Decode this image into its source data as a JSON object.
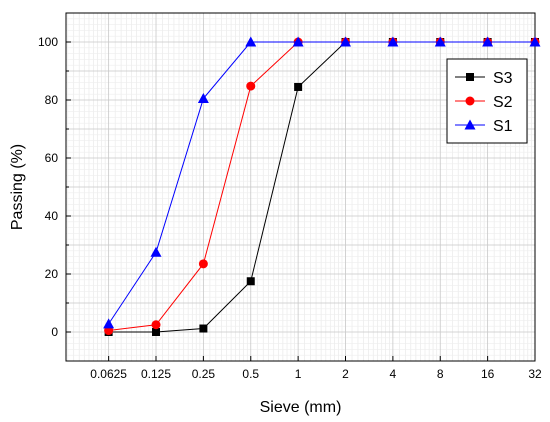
{
  "chart_data": {
    "type": "line",
    "xscale": "log2",
    "x": [
      0.0625,
      0.125,
      0.25,
      0.5,
      1,
      2,
      4,
      8,
      16,
      32
    ],
    "xticks": [
      "0.0625",
      "0.125",
      "0.25",
      "0.5",
      "1",
      "2",
      "4",
      "8",
      "16",
      "32"
    ],
    "yticks": [
      "0",
      "20",
      "40",
      "60",
      "80",
      "100"
    ],
    "xlim": [
      0.0625,
      32
    ],
    "ylim": [
      -10,
      110
    ],
    "xlabel": "Sieve (mm)",
    "ylabel": "Passing (%)",
    "grid": true,
    "legend": "top-right",
    "series": [
      {
        "name": "S3",
        "color": "#000000",
        "marker": "square",
        "values": [
          0,
          0,
          1.2,
          17.5,
          84.5,
          100,
          100,
          100,
          100,
          100
        ]
      },
      {
        "name": "S2",
        "color": "#ff0000",
        "marker": "circle",
        "values": [
          0.5,
          2.5,
          23.5,
          84.8,
          100,
          100,
          100,
          100,
          100,
          100
        ]
      },
      {
        "name": "S1",
        "color": "#0000ff",
        "marker": "triangle",
        "values": [
          2.8,
          27.5,
          80.5,
          100,
          100,
          100,
          100,
          100,
          100,
          100
        ]
      }
    ]
  }
}
